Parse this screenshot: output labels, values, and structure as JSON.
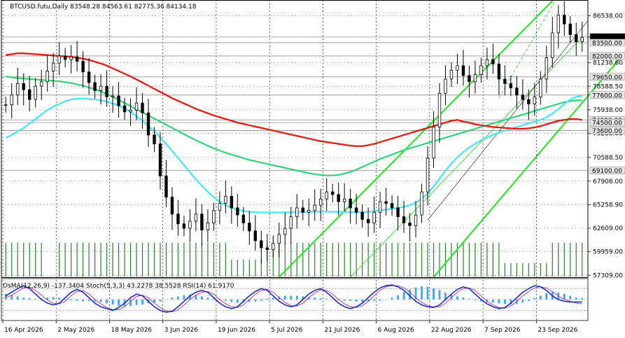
{
  "header": {
    "symbol_line": "BTCUSD.futu,Daily  83548.28 84563.61 82775.36 84134.18"
  },
  "indicator_header": "OsMA(12,26,9) -137.3404  Stoch(5,3,3) 43.2278 38.5528  RSI(14) 61.9170",
  "colors": {
    "candles": "#000000",
    "ema_red": "#e0221b",
    "ema_green": "#33d17a",
    "ema_cyan": "#55e5ee",
    "channel": "#33e033",
    "volume": "#2f7d32",
    "level_band": "#d8d8d8",
    "osma": "#3fa7e8",
    "stoch_main": "#1d2fb0",
    "stoch_signal": "#c02a9a"
  },
  "chart_data": {
    "type": "candlestick",
    "title": "BTCUSD.futu,Daily",
    "ohlc_last": {
      "open": 83548.28,
      "high": 84563.61,
      "low": 82775.36,
      "close": 84134.18
    },
    "ylim": [
      57100,
      88300
    ],
    "y_ticks": [
      86538.0,
      84134.18,
      81238.6,
      78588.5,
      75938.0,
      73288.0,
      70588.5,
      67908.0,
      65258.9,
      62609.0,
      59959.0,
      57309.0
    ],
    "x_tick_labels": [
      "16 Apr 2026",
      "2 May 2026",
      "18 May 2026",
      "3 Jun 2026",
      "19 Jun 2026",
      "5 Jul 2026",
      "21 Jul 2026",
      "6 Aug 2026",
      "22 Aug 2026",
      "7 Sep 2026",
      "23 Sep 2026"
    ],
    "levels": [
      {
        "label": "84134.18",
        "value": 84134.18
      },
      {
        "label": "83500.00",
        "value": 83500
      },
      {
        "label": "82000.00",
        "value": 82000
      },
      {
        "label": "79650.00",
        "value": 79650
      },
      {
        "label": "77600.00",
        "value": 77600
      },
      {
        "label": "74800.00",
        "value": 74800
      },
      {
        "label": "74500.00",
        "value": 74500
      },
      {
        "label": "73600.00",
        "value": 73600
      },
      {
        "label": "69100.00",
        "value": 69100
      }
    ],
    "series": [
      {
        "key": "close",
        "values": [
          76500,
          77600,
          78900,
          78200,
          77100,
          78600,
          79100,
          80300,
          81200,
          82000,
          81600,
          81900,
          81400,
          80200,
          79000,
          78100,
          78600,
          77400,
          77500,
          76400,
          75700,
          75900,
          76700,
          75600,
          73100,
          72100,
          68500,
          66100,
          64200,
          63100,
          62600,
          63400,
          64200,
          62400,
          63200,
          64600,
          65400,
          66200,
          64900,
          64100,
          63200,
          62300,
          61200,
          60400,
          60200,
          60900,
          61900,
          62600,
          63900,
          64900,
          64400,
          64600,
          65200,
          65900,
          66700,
          66400,
          65600,
          65900,
          64900,
          64400,
          63600,
          63200,
          64400,
          65600,
          65400,
          64900,
          63900,
          63200,
          62900,
          64100,
          66700,
          70500,
          74000,
          77800,
          79400,
          80400,
          80900,
          79800,
          79100,
          79900,
          80900,
          81600,
          81100,
          79400,
          78900,
          78400,
          77600,
          77100,
          76600,
          77400,
          79400,
          81800,
          84600,
          86600,
          85600,
          84400,
          83600,
          84100
        ]
      },
      {
        "key": "ema_red",
        "values": [
          82100,
          82200,
          82300,
          82300,
          82250,
          82200,
          82150,
          82100,
          82050,
          82000,
          81950,
          81900,
          81800,
          81700,
          81550,
          81350,
          81150,
          80900,
          80600,
          80300,
          80000,
          79700,
          79350,
          79000,
          78650,
          78300,
          77950,
          77600,
          77250,
          76950,
          76650,
          76350,
          76050,
          75800,
          75550,
          75300,
          75100,
          74900,
          74700,
          74500,
          74350,
          74200,
          74050,
          73900,
          73750,
          73600,
          73450,
          73300,
          73150,
          73000,
          72850,
          72700,
          72550,
          72400,
          72300,
          72200,
          72100,
          72000,
          71900,
          71850,
          71850,
          71950,
          72100,
          72300,
          72500,
          72700,
          72900,
          73100,
          73300,
          73500,
          73700,
          73900,
          74100,
          74300,
          74500,
          74700,
          74800,
          74600,
          74500,
          74300,
          74200,
          74100,
          74000,
          73950,
          73900,
          73850,
          73800,
          73800,
          73850,
          73950,
          74100,
          74300,
          74500,
          74700,
          74800,
          74900,
          74900,
          74800
        ]
      },
      {
        "key": "ema_green",
        "values": [
          79700,
          79600,
          79500,
          79450,
          79400,
          79350,
          79300,
          79250,
          79200,
          79150,
          79050,
          78950,
          78800,
          78650,
          78450,
          78250,
          78000,
          77700,
          77400,
          77050,
          76700,
          76350,
          76000,
          75650,
          75300,
          74950,
          74600,
          74250,
          73900,
          73550,
          73200,
          72850,
          72500,
          72200,
          71900,
          71600,
          71350,
          71100,
          70900,
          70700,
          70500,
          70300,
          70150,
          70000,
          69850,
          69700,
          69550,
          69400,
          69250,
          69100,
          68950,
          68800,
          68700,
          68600,
          68550,
          68550,
          68600,
          68750,
          68950,
          69200,
          69500,
          69800,
          70100,
          70400,
          70650,
          70900,
          71150,
          71400,
          71600,
          71800,
          72000,
          72200,
          72400,
          72600,
          72800,
          73000,
          73200,
          73400,
          73600,
          73800,
          74000,
          74200,
          74400,
          74600,
          74800,
          75000,
          75200,
          75400,
          75600,
          75800,
          76000,
          76200,
          76400,
          76600,
          76800,
          76900,
          77000,
          77000
        ]
      },
      {
        "key": "ema_cyan",
        "values": [
          72800,
          73100,
          73500,
          73900,
          74400,
          74900,
          75400,
          75900,
          76300,
          76600,
          76900,
          77100,
          77200,
          77200,
          77150,
          77100,
          77000,
          76850,
          76650,
          76400,
          76100,
          75700,
          75200,
          74700,
          74100,
          73500,
          72800,
          72100,
          71300,
          70500,
          69700,
          68900,
          68100,
          67400,
          66700,
          66100,
          65600,
          65200,
          64900,
          64700,
          64550,
          64450,
          64400,
          64380,
          64370,
          64370,
          64380,
          64390,
          64400,
          64420,
          64430,
          64440,
          64450,
          64460,
          64460,
          64450,
          64440,
          64430,
          64420,
          64400,
          64400,
          64450,
          64500,
          64600,
          64700,
          64800,
          64900,
          65000,
          65200,
          65500,
          65900,
          66500,
          67300,
          68200,
          69100,
          69900,
          70600,
          71200,
          71700,
          72100,
          72500,
          72800,
          73100,
          73400,
          73600,
          73800,
          74000,
          74200,
          74400,
          74600,
          74800,
          75100,
          75500,
          76000,
          76600,
          77100,
          77400,
          77500
        ]
      },
      {
        "key": "volume",
        "values": [
          1,
          1,
          1,
          1,
          1,
          1,
          1,
          0,
          0,
          1,
          1,
          1,
          1,
          1,
          1,
          1,
          1,
          1,
          1,
          1,
          1,
          1,
          1,
          1,
          1,
          1,
          1,
          1,
          1,
          1,
          1,
          1,
          1,
          1,
          1,
          1,
          1,
          1,
          0.5,
          0.5,
          0.5,
          0.5,
          0.5,
          0.5,
          1,
          1,
          1,
          1,
          1,
          1,
          1,
          1,
          1,
          1,
          1,
          1,
          1,
          1,
          1,
          1,
          1,
          1,
          1,
          1,
          1,
          1,
          1,
          1,
          1,
          1,
          1,
          1,
          1,
          1,
          1,
          1,
          1,
          1,
          1,
          1,
          1,
          1,
          1,
          1,
          0.4,
          0.4,
          0.4,
          0.4,
          0.4,
          0.4,
          0.4,
          0.4,
          1,
          1,
          1,
          1,
          1,
          1
        ]
      },
      {
        "key": "osma",
        "values": [
          0.9,
          0.7,
          0.5,
          0.3,
          0.2,
          0.1,
          0.2,
          0.3,
          0.4,
          0.3,
          0.1,
          -0.1,
          -0.2,
          -0.3,
          -0.2,
          -0.3,
          -0.4,
          -0.6,
          -0.8,
          -1.0,
          -1.1,
          -1.0,
          -0.9,
          -0.8,
          -0.6,
          -0.5,
          -0.3,
          0.0,
          0.3,
          0.5,
          0.7,
          0.8,
          0.7,
          0.5,
          0.3,
          0.1,
          -0.1,
          -0.2,
          -0.4,
          -0.5,
          -0.5,
          -0.4,
          -0.3,
          -0.2,
          0.1,
          0.3,
          0.5,
          0.6,
          0.6,
          0.6,
          0.5,
          0.4,
          0.3,
          0.2,
          0.1,
          0.0,
          -0.1,
          -0.2,
          -0.2,
          -0.3,
          -0.4,
          -0.3,
          -0.2,
          -0.2,
          0.0,
          0.3,
          0.7,
          1.2,
          1.6,
          1.9,
          2.1,
          2.0,
          1.8,
          1.5,
          1.1,
          0.8,
          0.5,
          0.3,
          0.1,
          -0.1,
          -0.3,
          -0.4,
          -0.5,
          -0.6,
          -0.7,
          -0.8,
          -0.7,
          -0.5,
          -0.2,
          0.2,
          0.6,
          1.0,
          1.2,
          1.1,
          0.9,
          0.6,
          0.3,
          0.2
        ]
      },
      {
        "key": "stoch_main",
        "values": [
          60,
          70,
          80,
          88,
          80,
          65,
          50,
          40,
          35,
          40,
          55,
          70,
          78,
          70,
          55,
          40,
          30,
          25,
          20,
          28,
          40,
          55,
          65,
          60,
          45,
          30,
          20,
          15,
          18,
          30,
          45,
          60,
          70,
          75,
          70,
          55,
          40,
          30,
          25,
          30,
          45,
          60,
          72,
          80,
          75,
          60,
          45,
          35,
          30,
          35,
          50,
          65,
          75,
          80,
          70,
          55,
          40,
          30,
          25,
          30,
          40,
          55,
          70,
          82,
          88,
          90,
          85,
          75,
          60,
          45,
          35,
          30,
          28,
          35,
          50,
          65,
          78,
          85,
          80,
          65,
          50,
          38,
          30,
          25,
          28,
          40,
          55,
          70,
          80,
          88,
          85,
          75,
          60,
          50,
          45,
          43,
          43,
          43
        ]
      },
      {
        "key": "stoch_signal",
        "values": [
          55,
          62,
          72,
          82,
          84,
          75,
          62,
          48,
          40,
          38,
          45,
          60,
          72,
          75,
          65,
          50,
          38,
          28,
          22,
          22,
          30,
          45,
          58,
          62,
          55,
          40,
          28,
          18,
          16,
          22,
          35,
          50,
          62,
          70,
          72,
          65,
          50,
          38,
          30,
          28,
          35,
          50,
          65,
          75,
          78,
          70,
          55,
          42,
          33,
          32,
          40,
          55,
          68,
          77,
          75,
          65,
          50,
          38,
          30,
          28,
          33,
          45,
          60,
          75,
          85,
          88,
          88,
          82,
          70,
          55,
          42,
          33,
          30,
          30,
          40,
          55,
          70,
          80,
          82,
          75,
          60,
          45,
          35,
          28,
          26,
          32,
          45,
          60,
          72,
          82,
          85,
          82,
          72,
          60,
          50,
          45,
          40,
          38
        ]
      },
      {
        "key": "rsi",
        "values": [
          55,
          60,
          66,
          70,
          64,
          56,
          48,
          45,
          42,
          46,
          55,
          62,
          66,
          60,
          52,
          45,
          40,
          36,
          33,
          38,
          45,
          52,
          57,
          54,
          46,
          38,
          32,
          28,
          30,
          38,
          45,
          52,
          57,
          60,
          56,
          49,
          42,
          38,
          35,
          38,
          45,
          52,
          58,
          62,
          60,
          54,
          47,
          42,
          39,
          41,
          47,
          53,
          58,
          61,
          58,
          52,
          46,
          42,
          40,
          42,
          47,
          53,
          60,
          68,
          72,
          74,
          72,
          66,
          58,
          52,
          47,
          44,
          43,
          46,
          53,
          60,
          65,
          68,
          64,
          58,
          51,
          46,
          42,
          40,
          42,
          48,
          55,
          62,
          66,
          70,
          68,
          65,
          62,
          62,
          62,
          62,
          62,
          62
        ]
      }
    ]
  }
}
